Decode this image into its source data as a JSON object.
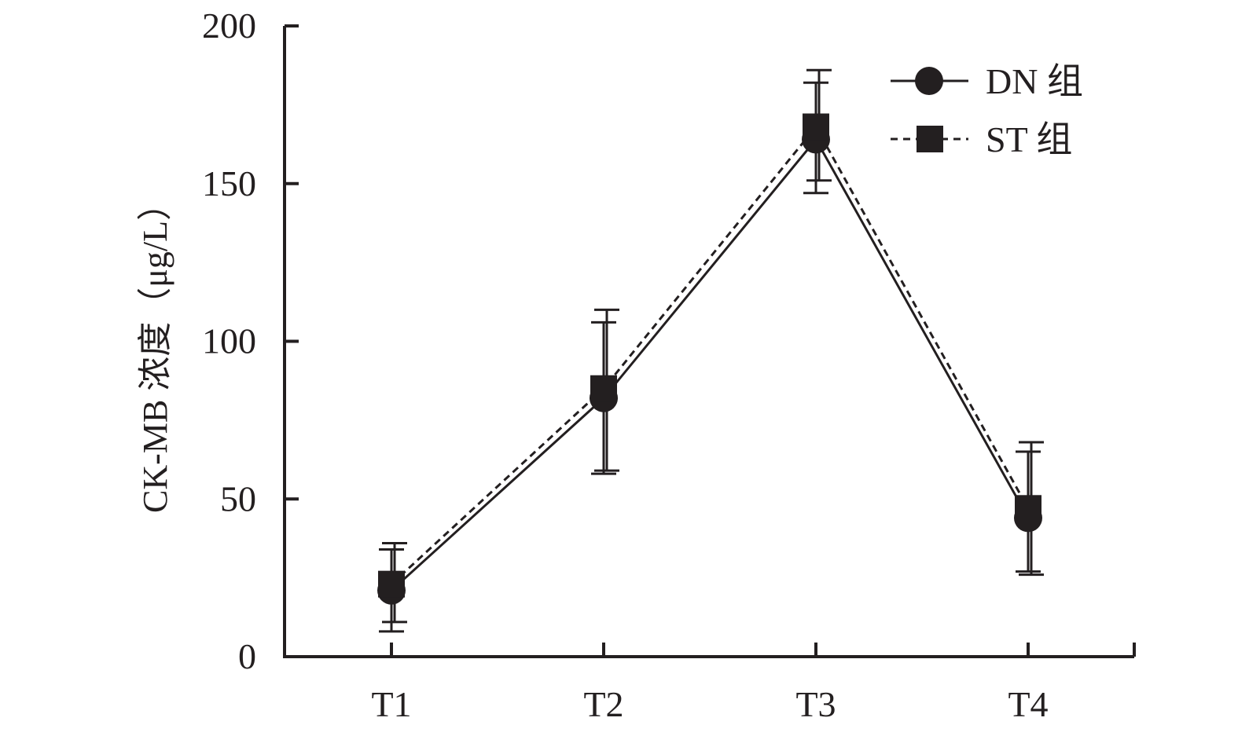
{
  "chart_data": {
    "type": "line",
    "title": "",
    "xlabel": "",
    "ylabel": "CK-MB 浓度（μg/L）",
    "categories": [
      "T1",
      "T2",
      "T3",
      "T4"
    ],
    "ylim": [
      0,
      200
    ],
    "yticks": [
      0,
      50,
      100,
      150,
      200
    ],
    "grid": false,
    "legend_position": "top-right",
    "series": [
      {
        "name": "DN 组",
        "marker": "circle",
        "line_style": "solid",
        "color": "#231f20",
        "values": [
          21,
          82,
          164,
          44
        ],
        "error_upper": [
          34,
          106,
          182,
          65
        ],
        "error_lower": [
          8,
          58,
          147,
          27
        ]
      },
      {
        "name": "ST 组",
        "marker": "square",
        "line_style": "dashed",
        "color": "#231f20",
        "values": [
          23,
          85,
          168,
          47
        ],
        "error_upper": [
          36,
          110,
          186,
          68
        ],
        "error_lower": [
          11,
          59,
          151,
          26
        ]
      }
    ]
  }
}
